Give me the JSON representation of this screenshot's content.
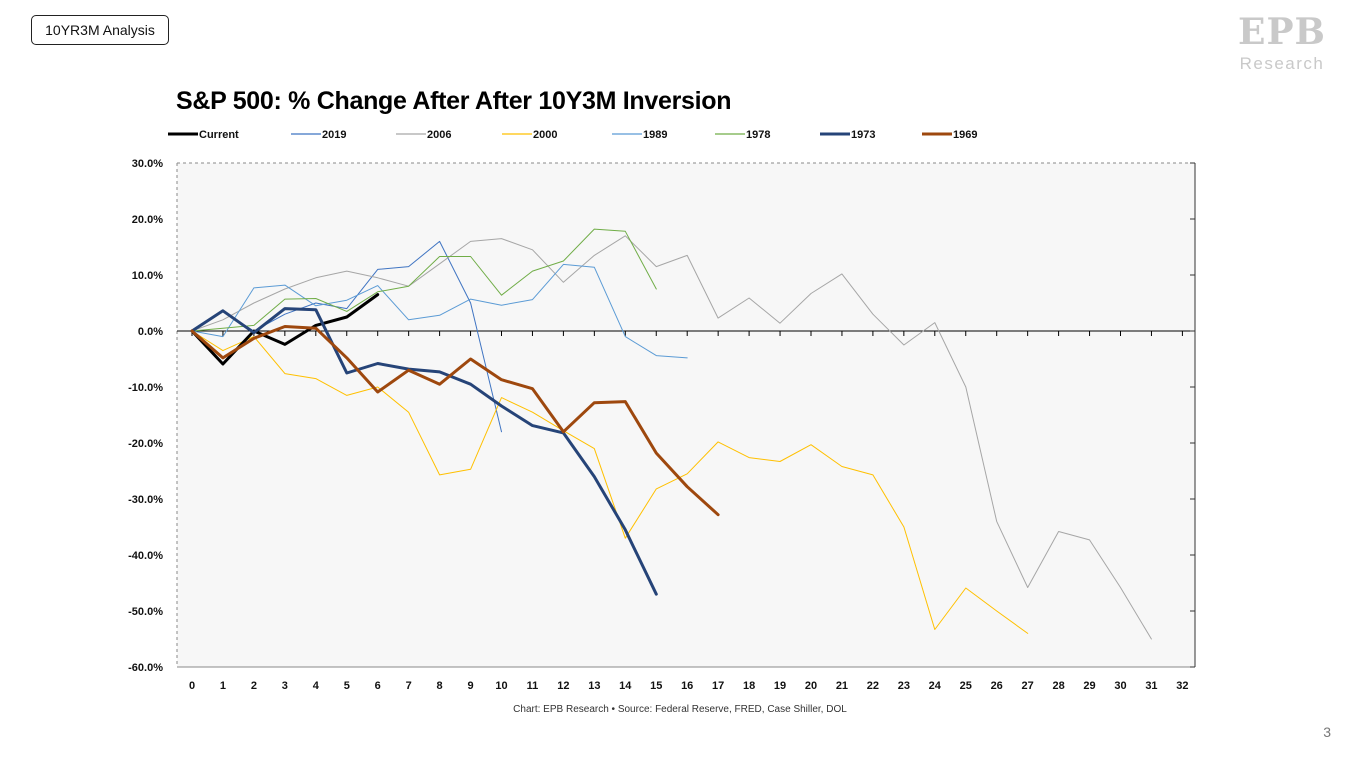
{
  "page": {
    "tag": "10YR3M Analysis",
    "logo_letters": "EPB",
    "logo_word": "Research",
    "page_number": "3",
    "source": "Chart: EPB Research •  Source: Federal Reserve, FRED, Case Shiller, DOL"
  },
  "colors": {
    "plot_background": "#f7f7f7",
    "border": "#8a8a8a"
  },
  "chart_data": {
    "type": "line",
    "title": "S&P 500: % Change After After 10Y3M Inversion",
    "xlabel": "",
    "ylabel": "",
    "x_ticks": [
      0,
      1,
      2,
      3,
      4,
      5,
      6,
      7,
      8,
      9,
      10,
      11,
      12,
      13,
      14,
      15,
      16,
      17,
      18,
      19,
      20,
      21,
      22,
      23,
      24,
      25,
      26,
      27,
      28,
      29,
      30,
      31,
      32
    ],
    "y_ticks": [
      30,
      20,
      10,
      0,
      -10,
      -20,
      -30,
      -40,
      -50,
      -60
    ],
    "y_tick_labels": [
      "30.0%",
      "20.0%",
      "10.0%",
      "0.0%",
      "-10.0%",
      "-20.0%",
      "-30.0%",
      "-40.0%",
      "-50.0%",
      "-60.0%"
    ],
    "xlim": [
      -0.5,
      32.5
    ],
    "ylim": [
      -60,
      30
    ],
    "grid": false,
    "legend_position": "top",
    "series": [
      {
        "name": "Current",
        "color": "#000000",
        "width": 3,
        "values": [
          0,
          -5.9,
          0,
          -2.4,
          1,
          2.5,
          6.5
        ]
      },
      {
        "name": "2019",
        "color": "#3f74c2",
        "width": 1,
        "values": [
          0,
          3.5,
          0,
          3,
          5,
          4,
          11,
          11.5,
          16,
          5,
          -18
        ]
      },
      {
        "name": "2006",
        "color": "#a6a6a6",
        "width": 1,
        "values": [
          0,
          2,
          5,
          7.5,
          9.5,
          10.7,
          9.5,
          8,
          12,
          16,
          16.5,
          14.5,
          8.7,
          13.5,
          17,
          11.5,
          13.5,
          2.3,
          5.9,
          1.4,
          6.7,
          10.2,
          3,
          -2.5,
          1.5,
          -10,
          -34,
          -45.8,
          -35.8,
          -37.3,
          -45.8,
          -55
        ]
      },
      {
        "name": "2000",
        "color": "#ffc000",
        "width": 1,
        "values": [
          0,
          -3.5,
          -1,
          -7.6,
          -8.5,
          -11.5,
          -10,
          -14.5,
          -25.7,
          -24.7,
          -11.9,
          -14.5,
          -17.8,
          -21,
          -37,
          -28.2,
          -25.5,
          -19.8,
          -22.6,
          -23.3,
          -20.3,
          -24.2,
          -25.7,
          -35,
          -53.3,
          -45.9,
          -50,
          -54
        ]
      },
      {
        "name": "1989",
        "color": "#5b9bd5",
        "width": 1,
        "values": [
          0,
          -1,
          7.7,
          8.2,
          4.5,
          5.5,
          8.1,
          2,
          2.8,
          5.7,
          4.6,
          5.6,
          11.9,
          11.4,
          -1,
          -4.4,
          -4.8
        ]
      },
      {
        "name": "1978",
        "color": "#70ad47",
        "width": 1,
        "values": [
          0,
          0.5,
          1,
          5.7,
          5.8,
          3.5,
          7,
          8,
          13.3,
          13.3,
          6.4,
          10.7,
          12.5,
          18.2,
          17.8,
          7.5
        ]
      },
      {
        "name": "1973",
        "color": "#264478",
        "width": 3,
        "values": [
          0,
          3.6,
          -0.3,
          4,
          3.8,
          -7.5,
          -5.8,
          -6.8,
          -7.3,
          -9.5,
          -13.4,
          -16.9,
          -18.2,
          -26,
          -35.5,
          -47
        ]
      },
      {
        "name": "1969",
        "color": "#9e480e",
        "width": 3,
        "values": [
          0,
          -4.8,
          -1.3,
          0.8,
          0.5,
          -4.8,
          -10.9,
          -7,
          -9.5,
          -5,
          -8.7,
          -10.3,
          -18,
          -12.8,
          -12.6,
          -21.8,
          -27.8,
          -32.8
        ]
      }
    ]
  }
}
